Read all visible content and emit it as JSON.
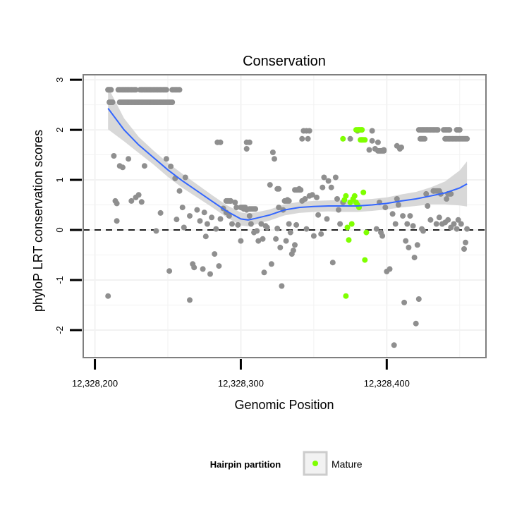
{
  "chart_data": {
    "type": "scatter",
    "title": "Conservation",
    "xlabel": "Genomic Position",
    "ylabel": "phyloP LRT conservation scores",
    "xlim": [
      12328192,
      12328468
    ],
    "ylim": [
      -2.55,
      3.1
    ],
    "x_ticks": [
      12328200,
      12328300,
      12328400
    ],
    "x_tick_labels": [
      "12,328,200",
      "12,328,300",
      "12,328,400"
    ],
    "y_ticks": [
      -2,
      -1,
      0,
      1,
      2,
      3
    ],
    "y_tick_labels": [
      "-2",
      "-1",
      "0",
      "1",
      "2",
      "3"
    ],
    "reference_line": {
      "y": 0,
      "style": "dashed"
    },
    "grid": true,
    "colors": {
      "other": "#8f8f8f",
      "mature": "#7fff00",
      "smooth": "#3366ff",
      "ribbon": "#d4d4d4",
      "panel_border": "#7f7f7f",
      "grid": "#f2f2f2"
    },
    "legend": {
      "title": "Hairpin partition",
      "position": "bottom",
      "entries": [
        {
          "label": "Mature",
          "color": "#7fff00"
        }
      ]
    },
    "series": [
      {
        "group": "other",
        "points": [
          [
            12328209,
            2.8
          ],
          [
            12328210,
            2.8
          ],
          [
            12328211,
            2.8
          ],
          [
            12328210,
            2.55
          ],
          [
            12328212,
            2.55
          ],
          [
            12328209,
            -1.32
          ],
          [
            12328213,
            1.48
          ],
          [
            12328214,
            0.58
          ],
          [
            12328215,
            0.53
          ],
          [
            12328215,
            0.18
          ],
          [
            12328217,
            1.28
          ],
          [
            12328219,
            1.25
          ],
          [
            12328223,
            1.42
          ],
          [
            12328225,
            0.58
          ],
          [
            12328228,
            0.65
          ],
          [
            12328230,
            0.7
          ],
          [
            12328232,
            0.56
          ],
          [
            12328234,
            1.28
          ],
          [
            12328242,
            -0.02
          ],
          [
            12328245,
            0.34
          ],
          [
            12328249,
            1.42
          ],
          [
            12328251,
            -0.82
          ],
          [
            12328252,
            1.27
          ],
          [
            12328255,
            1.03
          ],
          [
            12328256,
            0.21
          ],
          [
            12328258,
            0.78
          ],
          [
            12328260,
            0.45
          ],
          [
            12328261,
            0.05
          ],
          [
            12328262,
            1.05
          ],
          [
            12328265,
            -1.4
          ],
          [
            12328265,
            0.28
          ],
          [
            12328267,
            -0.68
          ],
          [
            12328268,
            -0.75
          ],
          [
            12328270,
            0.4
          ],
          [
            12328272,
            0.18
          ],
          [
            12328274,
            -0.78
          ],
          [
            12328275,
            0.35
          ],
          [
            12328276,
            -0.13
          ],
          [
            12328277,
            0.12
          ],
          [
            12328279,
            -0.88
          ],
          [
            12328280,
            0.25
          ],
          [
            12328282,
            -0.48
          ],
          [
            12328283,
            0.02
          ],
          [
            12328285,
            -0.72
          ],
          [
            12328286,
            0.22
          ],
          [
            12328288,
            0.43
          ],
          [
            12328290,
            0.35
          ],
          [
            12328292,
            0.28
          ],
          [
            12328293,
            0.58
          ],
          [
            12328294,
            0.12
          ],
          [
            12328296,
            0.55
          ],
          [
            12328297,
            0.45
          ],
          [
            12328298,
            0.1
          ],
          [
            12328300,
            -0.22
          ],
          [
            12328302,
            0.42
          ],
          [
            12328304,
            0.4
          ],
          [
            12328306,
            0.28
          ],
          [
            12328307,
            0.12
          ],
          [
            12328309,
            -0.05
          ],
          [
            12328311,
            -0.02
          ],
          [
            12328312,
            -0.22
          ],
          [
            12328314,
            0.12
          ],
          [
            12328315,
            -0.18
          ],
          [
            12328316,
            -0.85
          ],
          [
            12328317,
            0.08
          ],
          [
            12328318,
            0.05
          ],
          [
            12328320,
            0.9
          ],
          [
            12328321,
            -0.68
          ],
          [
            12328322,
            1.55
          ],
          [
            12328323,
            1.42
          ],
          [
            12328324,
            -0.18
          ],
          [
            12328325,
            0.03
          ],
          [
            12328326,
            0.45
          ],
          [
            12328327,
            -0.35
          ],
          [
            12328328,
            -1.12
          ],
          [
            12328329,
            0.4
          ],
          [
            12328331,
            -0.22
          ],
          [
            12328332,
            0.6
          ],
          [
            12328333,
            0.12
          ],
          [
            12328334,
            -0.05
          ],
          [
            12328335,
            -0.48
          ],
          [
            12328336,
            -0.41
          ],
          [
            12328337,
            -0.3
          ],
          [
            12328338,
            0.1
          ],
          [
            12328340,
            0.82
          ],
          [
            12328342,
            0.58
          ],
          [
            12328344,
            0.62
          ],
          [
            12328345,
            0.02
          ],
          [
            12328347,
            0.68
          ],
          [
            12328349,
            0.7
          ],
          [
            12328350,
            -0.12
          ],
          [
            12328352,
            0.65
          ],
          [
            12328353,
            0.3
          ],
          [
            12328355,
            -0.08
          ],
          [
            12328356,
            0.85
          ],
          [
            12328357,
            1.05
          ],
          [
            12328359,
            0.22
          ],
          [
            12328360,
            0.98
          ],
          [
            12328362,
            0.85
          ],
          [
            12328363,
            -0.65
          ],
          [
            12328365,
            1.05
          ],
          [
            12328366,
            0.62
          ],
          [
            12328367,
            0.4
          ],
          [
            12328368,
            0.12
          ],
          [
            12328370,
            0.55
          ],
          [
            12328393,
            0.02
          ],
          [
            12328395,
            0.55
          ],
          [
            12328396,
            -0.05
          ],
          [
            12328397,
            -0.12
          ],
          [
            12328398,
            1.6
          ],
          [
            12328399,
            0.45
          ],
          [
            12328400,
            -0.83
          ],
          [
            12328402,
            -0.78
          ],
          [
            12328404,
            0.32
          ],
          [
            12328405,
            -2.3
          ],
          [
            12328406,
            0.12
          ],
          [
            12328407,
            0.62
          ],
          [
            12328408,
            0.5
          ],
          [
            12328410,
            1.65
          ],
          [
            12328411,
            0.28
          ],
          [
            12328412,
            -1.45
          ],
          [
            12328413,
            -0.22
          ],
          [
            12328414,
            0.12
          ],
          [
            12328415,
            -0.35
          ],
          [
            12328416,
            0.28
          ],
          [
            12328418,
            0.08
          ],
          [
            12328419,
            -0.55
          ],
          [
            12328420,
            -1.87
          ],
          [
            12328421,
            -0.3
          ],
          [
            12328422,
            -1.38
          ],
          [
            12328424,
            0.02
          ],
          [
            12328425,
            -0.02
          ],
          [
            12328427,
            0.72
          ],
          [
            12328428,
            0.48
          ],
          [
            12328430,
            0.2
          ],
          [
            12328432,
            0.78
          ],
          [
            12328434,
            0.12
          ],
          [
            12328436,
            0.25
          ],
          [
            12328437,
            0.72
          ],
          [
            12328438,
            0.12
          ],
          [
            12328440,
            0.15
          ],
          [
            12328441,
            0.62
          ],
          [
            12328442,
            0.2
          ],
          [
            12328444,
            0.05
          ],
          [
            12328446,
            0.12
          ],
          [
            12328448,
            0.02
          ],
          [
            12328449,
            0.2
          ],
          [
            12328451,
            0.12
          ],
          [
            12328453,
            -0.38
          ],
          [
            12328454,
            -0.25
          ],
          [
            12328455,
            0.02
          ],
          [
            12328284,
            1.75
          ],
          [
            12328286,
            1.75
          ],
          [
            12328304,
            1.75
          ],
          [
            12328306,
            1.75
          ],
          [
            12328304,
            1.62
          ],
          [
            12328343,
            1.98
          ],
          [
            12328345,
            1.98
          ],
          [
            12328347,
            1.98
          ],
          [
            12328342,
            1.82
          ],
          [
            12328346,
            1.82
          ],
          [
            12328375,
            1.82
          ],
          [
            12328380,
            1.98
          ],
          [
            12328390,
            1.98
          ],
          [
            12328388,
            1.6
          ],
          [
            12328390,
            1.78
          ],
          [
            12328392,
            1.62
          ],
          [
            12328394,
            1.75
          ],
          [
            12328407,
            1.68
          ],
          [
            12328409,
            1.62
          ]
        ],
        "runs": [
          {
            "y": 2.8,
            "from": 12328209,
            "to": 12328211
          },
          {
            "y": 2.8,
            "from": 12328216,
            "to": 12328228
          },
          {
            "y": 2.8,
            "from": 12328231,
            "to": 12328249
          },
          {
            "y": 2.8,
            "from": 12328253,
            "to": 12328258
          },
          {
            "y": 2.55,
            "from": 12328210,
            "to": 12328212
          },
          {
            "y": 2.55,
            "from": 12328217,
            "to": 12328253
          },
          {
            "y": 2.0,
            "from": 12328422,
            "to": 12328435
          },
          {
            "y": 2.0,
            "from": 12328439,
            "to": 12328443
          },
          {
            "y": 2.0,
            "from": 12328448,
            "to": 12328450
          },
          {
            "y": 1.82,
            "from": 12328423,
            "to": 12328426
          },
          {
            "y": 1.82,
            "from": 12328440,
            "to": 12328455
          },
          {
            "y": 1.58,
            "from": 12328394,
            "to": 12328398
          },
          {
            "y": 0.82,
            "from": 12328325,
            "to": 12328326
          },
          {
            "y": 0.58,
            "from": 12328330,
            "to": 12328333
          },
          {
            "y": 0.58,
            "from": 12328290,
            "to": 12328293
          },
          {
            "y": 0.45,
            "from": 12328300,
            "to": 12328303
          },
          {
            "y": 0.8,
            "from": 12328337,
            "to": 12328341
          },
          {
            "y": 0.42,
            "from": 12328306,
            "to": 12328310
          },
          {
            "y": 0.78,
            "from": 12328432,
            "to": 12328436
          },
          {
            "y": 0.72,
            "from": 12328442,
            "to": 12328444
          }
        ]
      },
      {
        "group": "Mature",
        "points": [
          [
            12328370,
            1.82
          ],
          [
            12328371,
            0.6
          ],
          [
            12328372,
            0.68
          ],
          [
            12328373,
            0.05
          ],
          [
            12328374,
            -0.2
          ],
          [
            12328375,
            0.55
          ],
          [
            12328376,
            0.12
          ],
          [
            12328377,
            0.62
          ],
          [
            12328378,
            0.68
          ],
          [
            12328379,
            0.55
          ],
          [
            12328380,
            0.5
          ],
          [
            12328381,
            0.45
          ],
          [
            12328383,
            1.8
          ],
          [
            12328384,
            0.75
          ],
          [
            12328385,
            -0.6
          ],
          [
            12328386,
            -0.05
          ],
          [
            12328372,
            -1.32
          ],
          [
            12328381,
            2.0
          ],
          [
            12328383,
            2.0
          ]
        ],
        "runs": [
          {
            "y": 2.0,
            "from": 12328379,
            "to": 12328383
          },
          {
            "y": 1.8,
            "from": 12328382,
            "to": 12328385
          }
        ]
      }
    ],
    "smooth": {
      "method": "loess",
      "x": [
        12328209,
        12328220,
        12328230,
        12328240,
        12328250,
        12328260,
        12328270,
        12328280,
        12328290,
        12328300,
        12328305,
        12328310,
        12328320,
        12328330,
        12328340,
        12328350,
        12328360,
        12328370,
        12328380,
        12328390,
        12328400,
        12328410,
        12328420,
        12328430,
        12328440,
        12328450,
        12328455
      ],
      "y": [
        2.43,
        2.0,
        1.7,
        1.45,
        1.2,
        0.98,
        0.78,
        0.58,
        0.38,
        0.22,
        0.2,
        0.23,
        0.3,
        0.4,
        0.45,
        0.47,
        0.48,
        0.48,
        0.48,
        0.5,
        0.53,
        0.58,
        0.62,
        0.68,
        0.74,
        0.84,
        0.92
      ],
      "se": [
        0.42,
        0.23,
        0.16,
        0.14,
        0.14,
        0.14,
        0.13,
        0.12,
        0.12,
        0.13,
        0.13,
        0.12,
        0.11,
        0.11,
        0.11,
        0.11,
        0.11,
        0.12,
        0.12,
        0.12,
        0.12,
        0.13,
        0.14,
        0.17,
        0.23,
        0.35,
        0.45
      ]
    }
  }
}
